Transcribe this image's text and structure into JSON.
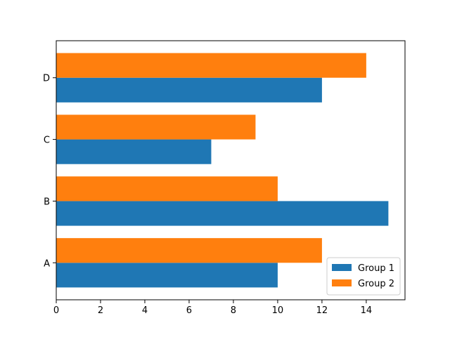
{
  "chart_data": {
    "type": "bar",
    "orientation": "horizontal",
    "categories": [
      "A",
      "B",
      "C",
      "D"
    ],
    "series": [
      {
        "name": "Group 1",
        "values": [
          10,
          15,
          7,
          12
        ],
        "color": "#1f77b4"
      },
      {
        "name": "Group 2",
        "values": [
          12,
          10,
          9,
          14
        ],
        "color": "#ff7f0e"
      }
    ],
    "xticks": [
      0,
      2,
      4,
      6,
      8,
      10,
      12,
      14
    ],
    "xlim": [
      0,
      15.75
    ],
    "title": "",
    "xlabel": "",
    "ylabel": "",
    "grid": false,
    "legend_position": "lower-right"
  }
}
